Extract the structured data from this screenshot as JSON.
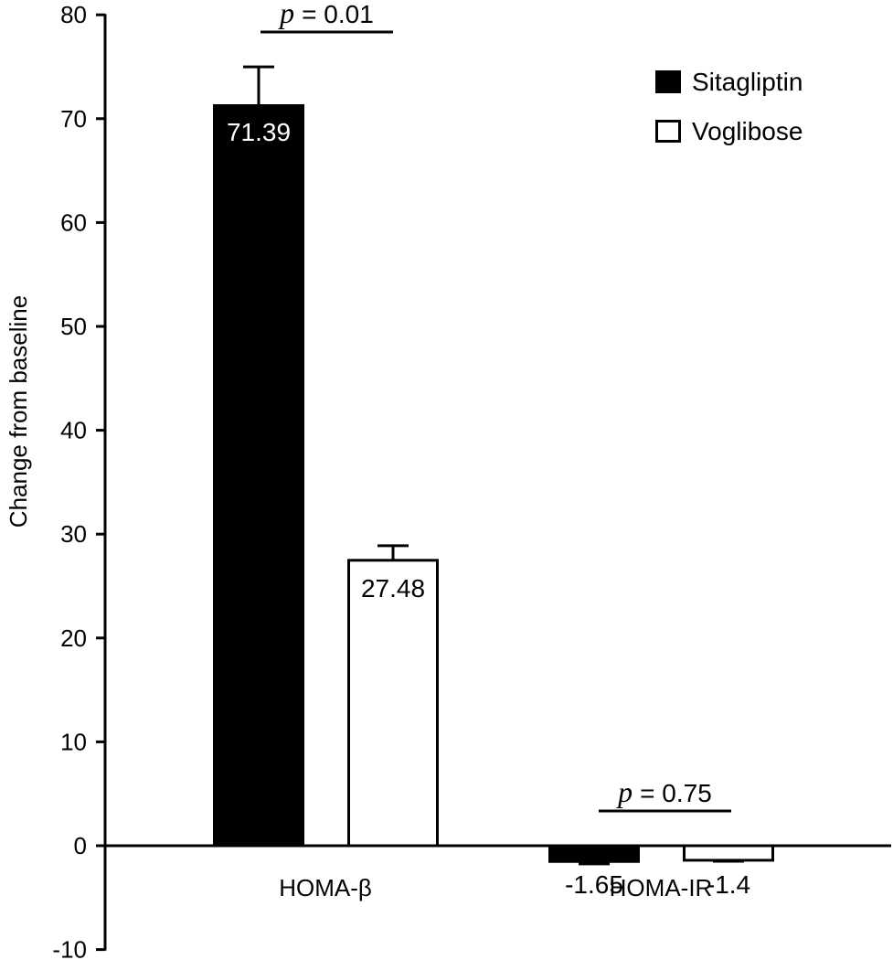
{
  "chart_data": {
    "type": "bar",
    "title": "",
    "xlabel": "",
    "ylabel": "Change from baseline",
    "ylim": [
      -10,
      80
    ],
    "yticks": [
      -10,
      0,
      10,
      20,
      30,
      40,
      50,
      60,
      70,
      80
    ],
    "categories": [
      "HOMA-β",
      "HOMA-IR"
    ],
    "series": [
      {
        "name": "Sitagliptin",
        "color": "#000000",
        "values": [
          71.39,
          -1.65
        ],
        "errors": [
          3.6,
          0.1
        ],
        "labels": [
          "71.39",
          "-1.65"
        ]
      },
      {
        "name": "Voglibose",
        "color": "#ffffff",
        "values": [
          27.48,
          -1.4
        ],
        "errors": [
          1.4,
          0.1
        ],
        "labels": [
          "27.48",
          "-1.4"
        ]
      }
    ],
    "legend": {
      "placement": "top-right"
    },
    "annotations": [
      {
        "p_symbol": "p",
        "text": "= 0.01",
        "category": "HOMA-β"
      },
      {
        "p_symbol": "p",
        "text": "= 0.75",
        "category": "HOMA-IR"
      }
    ],
    "grid": false
  }
}
